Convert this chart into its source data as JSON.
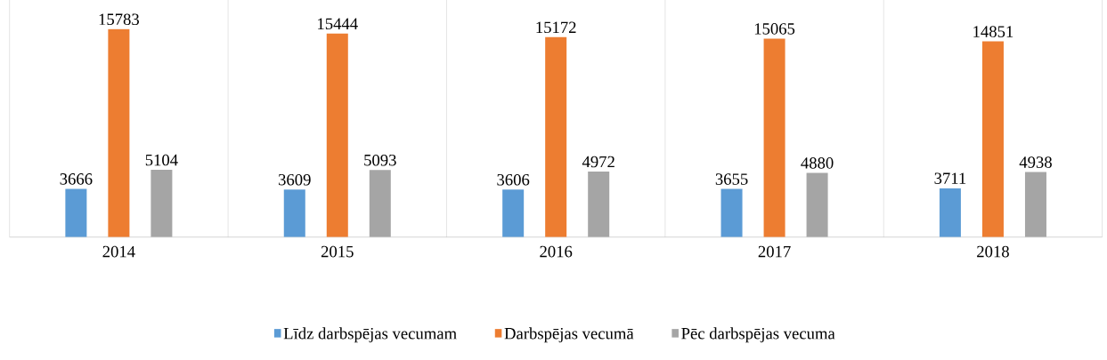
{
  "chart_data": {
    "type": "bar",
    "categories": [
      "2014",
      "2015",
      "2016",
      "2017",
      "2018"
    ],
    "series": [
      {
        "name": "Līdz darbspējas vecumam",
        "color": "#5b9bd5",
        "values": [
          3666,
          3609,
          3606,
          3655,
          3711
        ]
      },
      {
        "name": "Darbspējas vecumā",
        "color": "#ed7d31",
        "values": [
          15783,
          15444,
          15172,
          15065,
          14851
        ]
      },
      {
        "name": "Pēc darbspējas vecuma",
        "color": "#a5a5a5",
        "values": [
          5104,
          5093,
          4972,
          4880,
          4938
        ]
      }
    ],
    "data_labels": true,
    "grid": "x",
    "legend": "bottom"
  }
}
